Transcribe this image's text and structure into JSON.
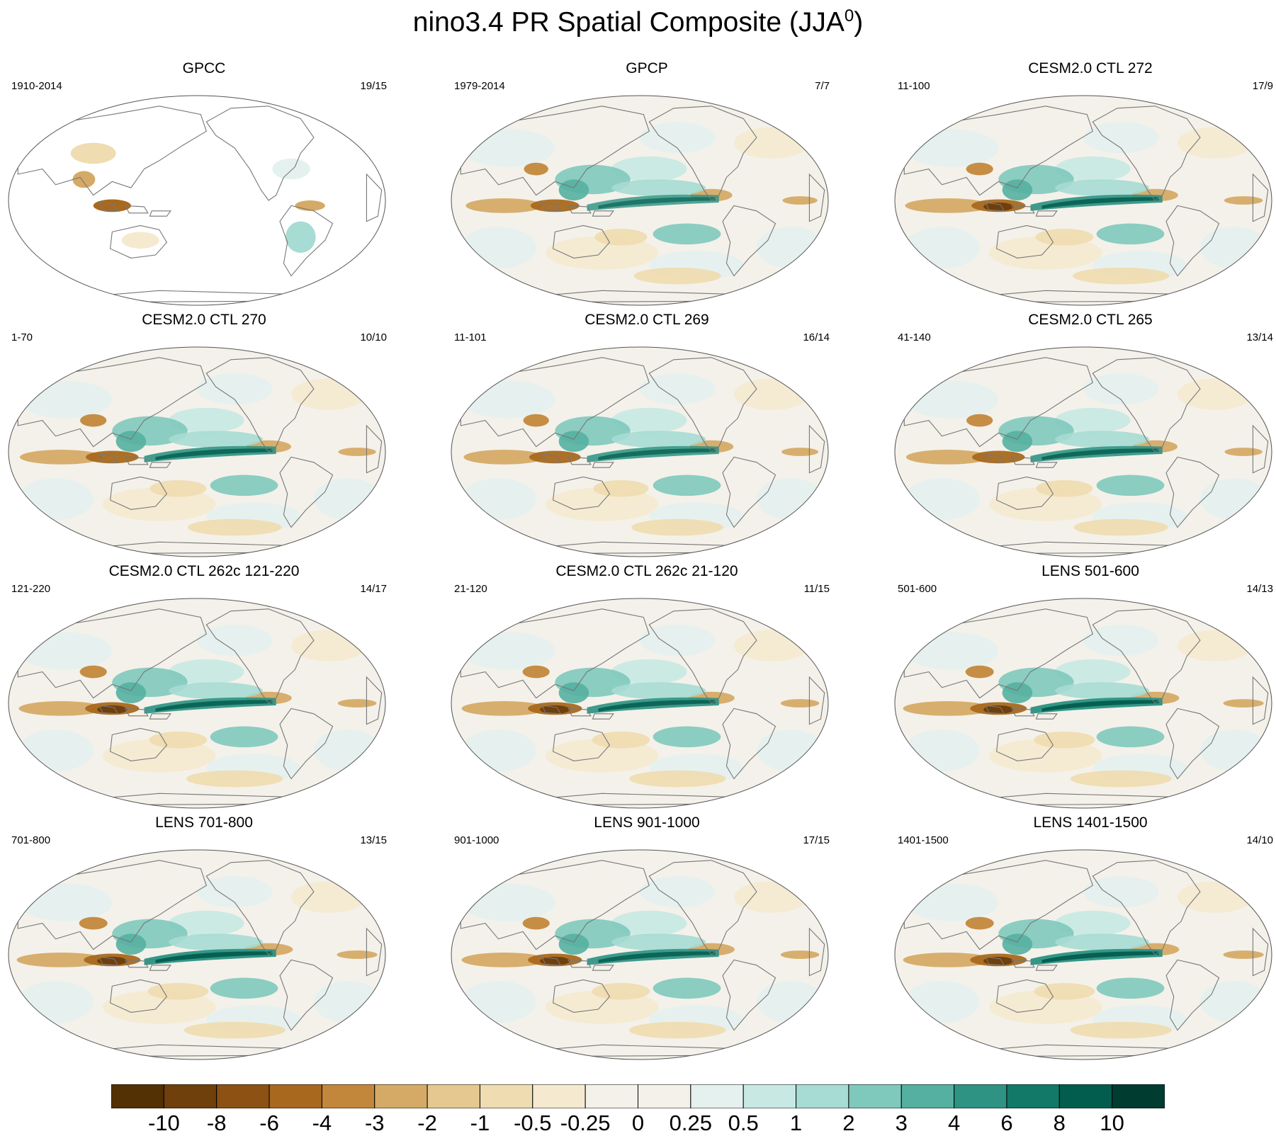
{
  "title": "nino3.4 PR Spatial Composite (JJA",
  "title_sup": "0",
  "title_close": ")",
  "panels": [
    {
      "name": "GPCC",
      "years": "1910-2014",
      "count": "19/15",
      "land_only": true,
      "eq": 0.2
    },
    {
      "name": "GPCP",
      "years": "1979-2014",
      "count": "7/7",
      "land_only": false,
      "eq": 0.65
    },
    {
      "name": "CESM2.0 CTL 272",
      "years": "11-100",
      "count": "17/9",
      "land_only": false,
      "eq": 0.85
    },
    {
      "name": "CESM2.0 CTL 270",
      "years": "1-70",
      "count": "10/10",
      "land_only": false,
      "eq": 0.8
    },
    {
      "name": "CESM2.0 CTL 269",
      "years": "11-101",
      "count": "16/14",
      "land_only": false,
      "eq": 0.75
    },
    {
      "name": "CESM2.0 CTL 265",
      "years": "41-140",
      "count": "13/14",
      "land_only": false,
      "eq": 0.8
    },
    {
      "name": "CESM2.0 CTL 262c 121-220",
      "years": "121-220",
      "count": "14/17",
      "land_only": false,
      "eq": 0.85
    },
    {
      "name": "CESM2.0 CTL 262c 21-120",
      "years": "21-120",
      "count": "11/15",
      "land_only": false,
      "eq": 0.85
    },
    {
      "name": "LENS 501-600",
      "years": "501-600",
      "count": "14/13",
      "land_only": false,
      "eq": 0.95
    },
    {
      "name": "LENS 701-800",
      "years": "701-800",
      "count": "13/15",
      "land_only": false,
      "eq": 0.95
    },
    {
      "name": "LENS 901-1000",
      "years": "901-1000",
      "count": "17/15",
      "land_only": false,
      "eq": 0.85
    },
    {
      "name": "LENS 1401-1500",
      "years": "1401-1500",
      "count": "14/10",
      "land_only": false,
      "eq": 0.95
    }
  ],
  "colorbar": {
    "labels": [
      "-10",
      "-8",
      "-6",
      "-4",
      "-3",
      "-2",
      "-1",
      "-0.5",
      "-0.25",
      "0",
      "0.25",
      "0.5",
      "1",
      "2",
      "3",
      "4",
      "6",
      "8",
      "10"
    ],
    "colors": [
      "#543005",
      "#6f3f0c",
      "#8c5113",
      "#a8691f",
      "#c3873c",
      "#d5aa66",
      "#e4c88f",
      "#efdcb1",
      "#f5ead0",
      "#f4f1ea",
      "#e4f1ef",
      "#c8e9e3",
      "#a6dcd3",
      "#7fc9bc",
      "#55b0a1",
      "#2f9384",
      "#127868",
      "#035d4e",
      "#003c30"
    ]
  }
}
